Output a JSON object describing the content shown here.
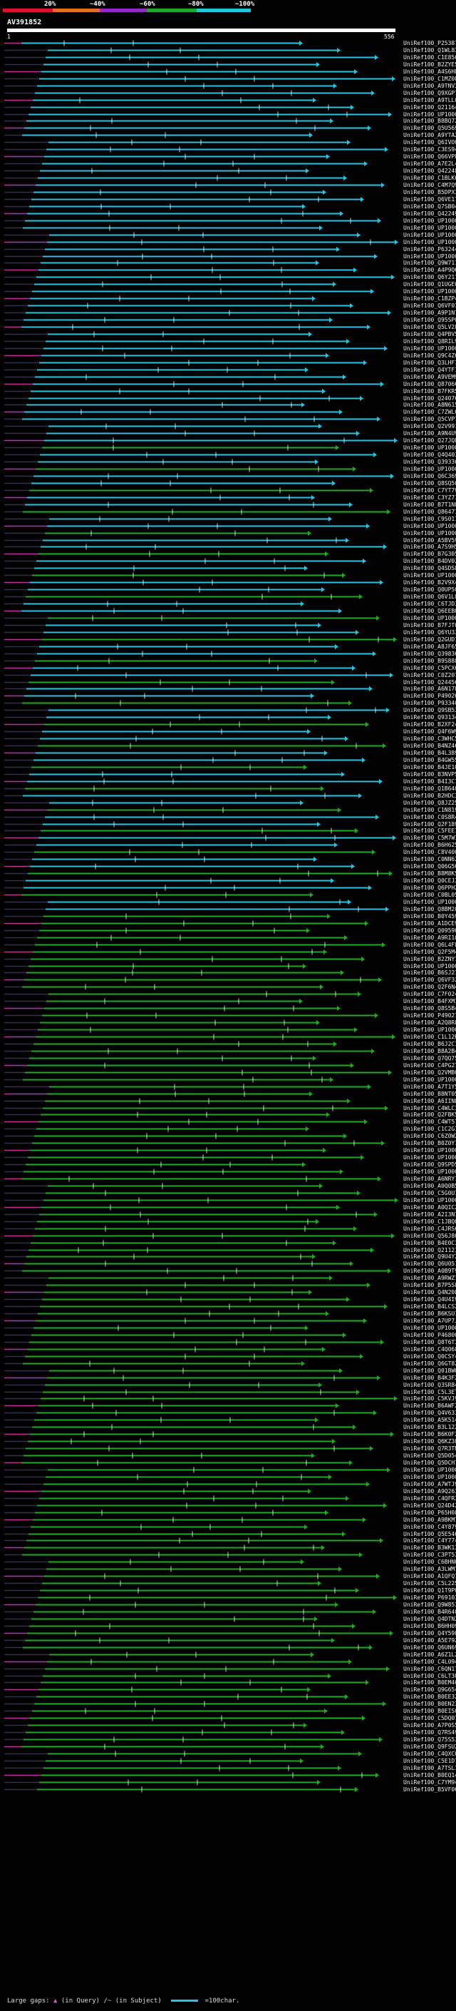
{
  "legend": {
    "ticks": [
      "20%",
      "~40%",
      "~60%",
      "~80%",
      "~100%"
    ],
    "colors": [
      "#e0102a",
      "#e07020",
      "#9a28c8",
      "#22a822",
      "#26c4e0"
    ]
  },
  "query": {
    "name": "AV391852",
    "start": "1",
    "end": "556"
  },
  "hits": [
    "UniRef100_P25387",
    "UniRef100_Q1WL83",
    "UniRef100_C1E856",
    "UniRef100_B2ZYE5",
    "UniRef100_A4S6H8",
    "UniRef100_C1MZ08",
    "UniRef100_A9TNV3",
    "UniRef100_Q9XGP7",
    "UniRef100_A9TLL0",
    "UniRef100_Q21164",
    "UniRef100_UP1000..",
    "UniRef100_B8BQ72",
    "UniRef100_Q5U569",
    "UniRef100_A9YTA2",
    "UniRef100_Q6IVO0",
    "UniRef100_C3ES94",
    "UniRef100_Q66VP8",
    "UniRef100_A7E2L4",
    "UniRef100_Q42248",
    "UniRef100_C1BLK6",
    "UniRef100_C4M7Q9",
    "UniRef100_B5DPX3",
    "UniRef100_Q6VE17",
    "UniRef100_Q7SB04",
    "UniRef100_Q42249",
    "UniRef100_UP1000..",
    "UniRef100_UP1000..",
    "UniRef100_UP1000..",
    "UniRef100_UP1000..",
    "UniRef100_P63244",
    "UniRef100_UP1000..",
    "UniRef100_Q9W711",
    "UniRef100_A4P9Q6",
    "UniRef100_Q6Y217",
    "UniRef100_Q1UGE0",
    "UniRef100_UP1000..",
    "UniRef100_C1BZP4",
    "UniRef100_Q6VF01",
    "UniRef100_A9P1N7",
    "UniRef100_Q95SP0",
    "UniRef100_Q5LV28",
    "UniRef100_Q4PBV5",
    "UniRef100_Q8RIL9",
    "UniRef100_UP1000..",
    "UniRef100_Q9C4Z6",
    "UniRef100_Q3LHF1",
    "UniRef100_Q4YTF1",
    "UniRef100_A9VEM9",
    "UniRef100_Q87066",
    "UniRef100_B7FKR5",
    "UniRef100_Q24076",
    "UniRef100_A8N615",
    "UniRef100_C7ZWL6",
    "UniRef100_Q5CVP7",
    "UniRef100_Q2V991",
    "UniRef100_A9N4U9",
    "UniRef100_Q27JQ8",
    "UniRef100_UP1000..",
    "UniRef100_Q4Q403",
    "UniRef100_Q39336",
    "UniRef100_UP1000..",
    "UniRef100_Q6C369",
    "UniRef100_Q8SQ50",
    "UniRef100_C7YT79",
    "UniRef100_C3YZ71",
    "UniRef100_B7T1N8",
    "UniRef100_Q86471",
    "UniRef100_C9S011",
    "UniRef100_UP1000..",
    "UniRef100_UP1000..",
    "UniRef100_A5BV59",
    "UniRef100_A7S9H5",
    "UniRef100_B7G305",
    "UniRef100_B4DV02",
    "UniRef100_Q4SDS8",
    "UniRef100_UP1000..",
    "UniRef100_B2V9X4",
    "UniRef100_Q0UP50",
    "UniRef100_Q6V1L8",
    "UniRef100_C6TJD3",
    "UniRef100_Q6EEB0",
    "UniRef100_UP1000..",
    "UniRef100_B7FJT0",
    "UniRef100_Q6YU33",
    "UniRef100_Q2GUD1",
    "UniRef100_A8JF65",
    "UniRef100_Q39836",
    "UniRef100_B9S888",
    "UniRef100_C5PCX6",
    "UniRef100_C0Z207",
    "UniRef100_Q24456",
    "UniRef100_A6N178",
    "UniRef100_P49026",
    "UniRef100_P93340",
    "UniRef100_Q9SB53",
    "UniRef100_Q93134",
    "UniRef100_B2XF24",
    "UniRef100_Q4F6W9",
    "UniRef100_C3WHC5",
    "UniRef100_B4NZ46",
    "UniRef100_B4L389",
    "UniRef100_B4GW55",
    "UniRef100_B4JE10",
    "UniRef100_B3NVP5",
    "UniRef100_B4I3C7",
    "UniRef100_Q1B640",
    "UniRef100_B2HDC3",
    "UniRef100_Q8JZ25",
    "UniRef100_C1N819",
    "UniRef100_C0S8R4",
    "UniRef100_Q2F189",
    "UniRef100_C5FEE7",
    "UniRef100_C5M7W1",
    "UniRef100_B6H625",
    "UniRef100_C8V400",
    "UniRef100_C0NN62",
    "UniRef100_Q06G56",
    "UniRef100_B8M8K5",
    "UniRef100_Q0CEJ3",
    "UniRef100_Q6PPH2",
    "UniRef100_C0BL05",
    "UniRef100_UP1000..",
    "UniRef100_Q8BM20",
    "UniRef100_B0Y459",
    "UniRef100_A1DCE9",
    "UniRef100_Q09590",
    "UniRef100_A9RI10",
    "UniRef100_Q6L4F8",
    "UniRef100_Q2F5M4",
    "UniRef100_B2ZNY1",
    "UniRef100_UP1000..",
    "UniRef100_B6SJ21",
    "UniRef100_Q6VF32",
    "UniRef100_Q2F6N4",
    "UniRef100_C7F024",
    "UniRef100_B4FXM1",
    "UniRef100_Q8S5B4",
    "UniRef100_P49027",
    "UniRef100_A2Q8R8",
    "UniRef100_UP1000..",
    "UniRef100_C1L12K",
    "UniRef100_B6J2C1",
    "UniRef100_B8A2B4",
    "UniRef100_Q7QQ75",
    "UniRef100_C4PG27",
    "UniRef100_Q2VMB0",
    "UniRef100_UP1000..",
    "UniRef100_A7T1Y5",
    "UniRef100_B8NT05",
    "UniRef100_A6IIN8",
    "UniRef100_C4WLC3",
    "UniRef100_Q2FBK5",
    "UniRef100_C4WT57",
    "UniRef100_C1C2G1",
    "UniRef100_C6Z0W2",
    "UniRef100_B0Z0Y1",
    "UniRef100_UP1000..",
    "UniRef100_UP1000..",
    "UniRef100_Q9SPD5",
    "UniRef100_UP1000..",
    "UniRef100_A6NRY1",
    "UniRef100_A0Q0B5",
    "UniRef100_C5G0U1",
    "UniRef100_UP1000..",
    "UniRef100_A0QIC2",
    "UniRef100_A2I3N1",
    "UniRef100_C1JBQ0",
    "UniRef100_C4JRS6",
    "UniRef100_Q56J80",
    "UniRef100_B4E0C3",
    "UniRef100_Q21121",
    "UniRef100_Q9U4Y2",
    "UniRef100_Q6U051",
    "UniRef100_A0B9T9",
    "UniRef100_A9RWZ1",
    "UniRef100_B7P5S8",
    "UniRef100_Q4N208",
    "UniRef100_Q4U4I9",
    "UniRef100_B4LCS2",
    "UniRef100_B6KSU1",
    "UniRef100_A7UP7J",
    "UniRef100_UP1000..",
    "UniRef100_P46800",
    "UniRef100_Q8T6T3",
    "UniRef100_C4Q068",
    "UniRef100_Q0CSY4",
    "UniRef100_Q6GT82",
    "UniRef100_Q01BW0",
    "UniRef100_B4K3F2",
    "UniRef100_Q3SR84",
    "UniRef100_C5L3E7",
    "UniRef100_C5KVJ9",
    "UniRef100_B6AWF2",
    "UniRef100_Q4V633",
    "UniRef100_A5K514",
    "UniRef100_B3L122",
    "UniRef100_B6K0F2",
    "UniRef100_Q6KZ38",
    "UniRef100_Q7R3TN",
    "UniRef100_Q5D054",
    "UniRef100_Q5DCH7",
    "UniRef100_UP1000..",
    "UniRef100_UP1000..",
    "UniRef100_A7WTJ9",
    "UniRef100_A9Q263",
    "UniRef100_C4QFR3",
    "UniRef100_Q24D42",
    "UniRef100_P65H08",
    "UniRef100_A9BKM7",
    "UniRef100_C4Y879",
    "UniRef100_Q5E546",
    "UniRef100_C4Y774",
    "UniRef100_B3WK13",
    "UniRef100_C3PT53",
    "UniRef100_C6BHN0",
    "UniRef100_A3LWM7",
    "UniRef100_A1QFQ74",
    "UniRef100_C5L225",
    "UniRef100_Q1T9P0",
    "UniRef100_P69103",
    "UniRef100_Q9W853",
    "UniRef100_B4R640",
    "UniRef100_Q4DTN2",
    "UniRef100_B6HH09",
    "UniRef100_Q4Y590",
    "UniRef100_A5E792",
    "UniRef100_Q6UN69",
    "UniRef100_A6Z1L2",
    "UniRef100_C4L094",
    "UniRef100_C6QN17",
    "UniRef100_C6LT30",
    "UniRef100_B0EM40",
    "UniRef100_Q9G654",
    "UniRef100_B0EE32",
    "UniRef100_B0EN23",
    "UniRef100_B0EIS0",
    "UniRef100_C5DQ07",
    "UniRef100_A7P0S5",
    "UniRef100_Q7RS49",
    "UniRef100_Q75S53",
    "UniRef100_Q9FSU2",
    "UniRef100_C4QXC0",
    "UniRef100_C5E1D7",
    "UniRef100_A7TSL1",
    "UniRef100_B0EQ14",
    "UniRef100_C7YM94",
    "UniRef100_B5VF06"
  ],
  "footer": {
    "large_gaps": "Large gaps:",
    "gap_in_query": "(in Query)",
    "gap_in_subject": "/~ (in Subject)",
    "scale_label": "=100char."
  }
}
